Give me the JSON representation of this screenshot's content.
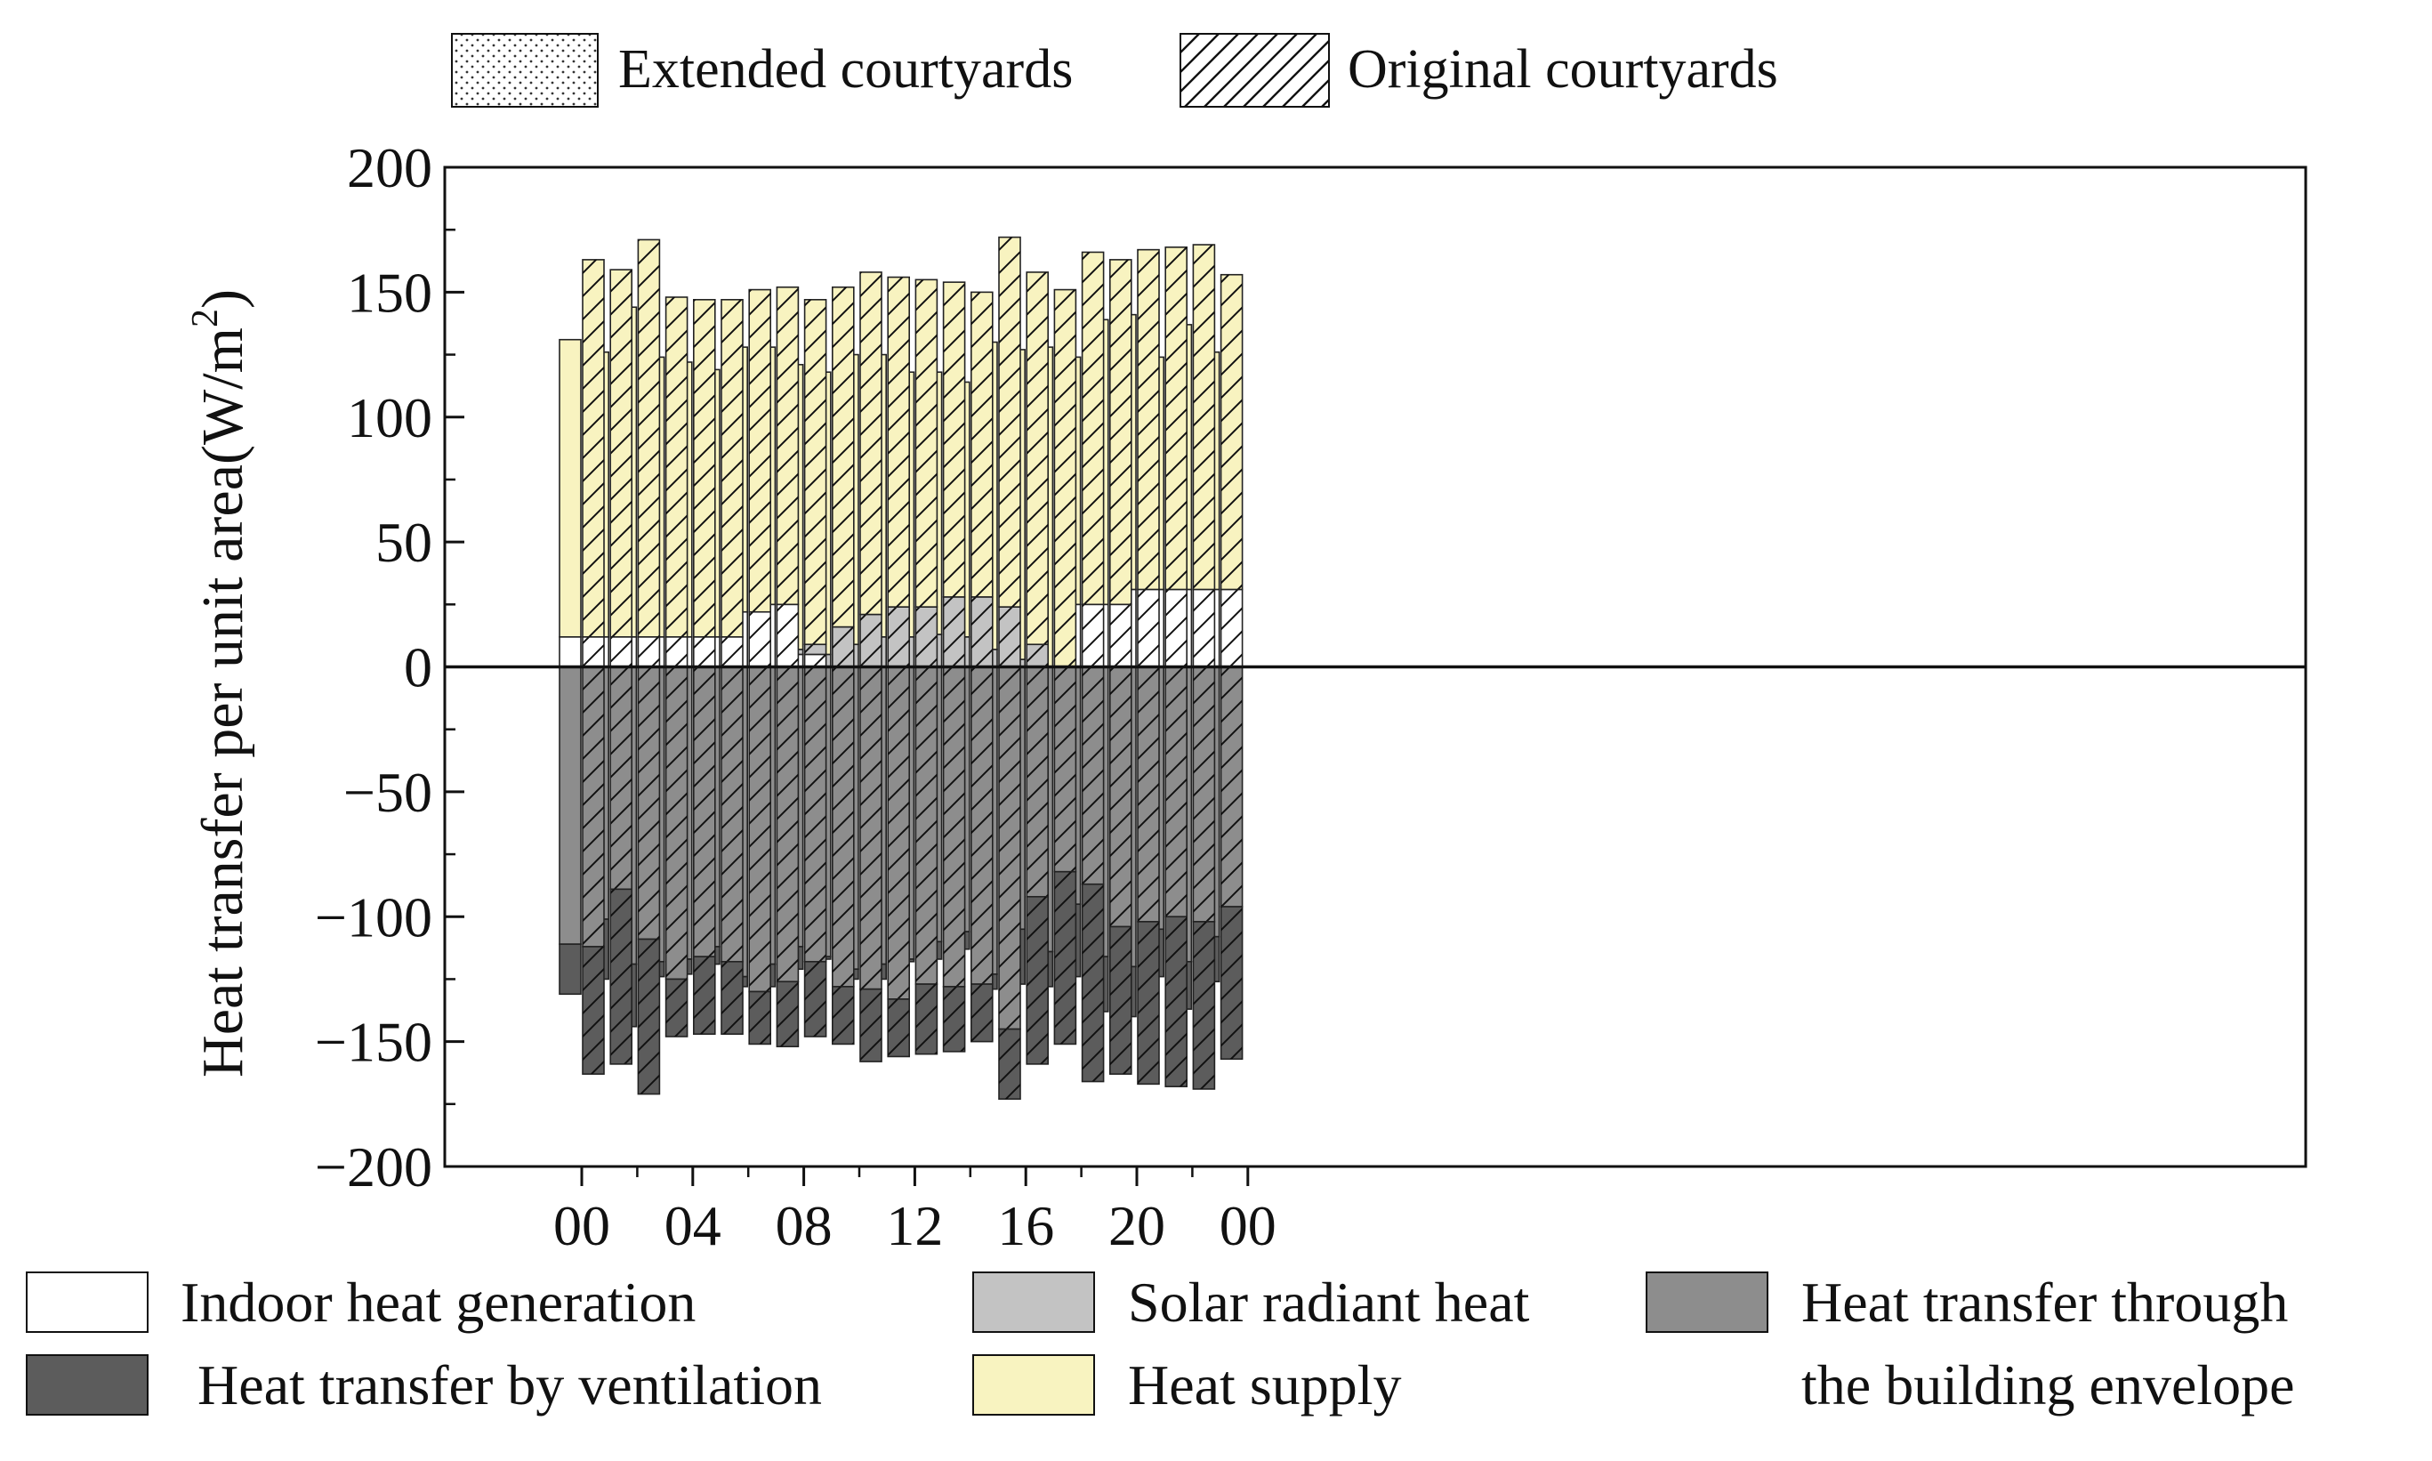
{
  "chart_data": {
    "type": "bar",
    "subtype": "grouped-stacked",
    "ylabel": "Heat transfer per unit area(W/m",
    "ylabel_sup": "2",
    "ylabel_close": ")",
    "ylim": [
      -200,
      200
    ],
    "yticks": [
      -200,
      -150,
      -100,
      -50,
      0,
      50,
      100,
      150,
      200
    ],
    "ytick_labels": [
      "−200",
      "−150",
      "−100",
      "−50",
      "0",
      "50",
      "100",
      "150",
      "200"
    ],
    "x_tick_labels": [
      "00",
      "04",
      "08",
      "12",
      "16",
      "20",
      "00"
    ],
    "x_tick_hours": [
      0,
      4,
      8,
      12,
      16,
      20,
      24
    ],
    "hours": [
      0,
      1,
      2,
      3,
      4,
      5,
      6,
      7,
      8,
      9,
      10,
      11,
      12,
      13,
      14,
      15,
      16,
      17,
      18,
      19,
      20,
      21,
      22,
      23
    ],
    "groups": [
      {
        "name": "Extended courtyards",
        "pattern": "dots"
      },
      {
        "name": "Original courtyards",
        "pattern": "hatch"
      }
    ],
    "components": [
      {
        "name": "Indoor heat generation",
        "color": "#ffffff"
      },
      {
        "name": "Solar radiant heat",
        "color": "#c3c3c3"
      },
      {
        "name": "Heat transfer through the building envelope",
        "color": "#8d8d8d"
      },
      {
        "name": "Heat transfer by ventilation",
        "color": "#5c5c5c"
      },
      {
        "name": "Heat supply",
        "color": "#f8f3c0"
      }
    ],
    "series": {
      "extended": {
        "indoor": [
          12,
          12,
          12,
          12,
          12,
          12,
          22,
          25,
          5,
          0,
          0,
          0,
          0,
          0,
          0,
          0,
          0,
          0,
          25,
          25,
          31,
          31,
          31,
          31
        ],
        "solar": [
          0,
          0,
          0,
          0,
          0,
          0,
          0,
          0,
          2,
          5,
          9,
          12,
          12,
          13,
          12,
          7,
          3,
          0,
          0,
          0,
          0,
          0,
          0,
          0
        ],
        "heat_supply": [
          119,
          114,
          132,
          112,
          110,
          107,
          106,
          103,
          114,
          113,
          116,
          113,
          106,
          105,
          102,
          123,
          124,
          128,
          99,
          114,
          110,
          93,
          106,
          95
        ],
        "envelope": [
          -111,
          -101,
          -119,
          -118,
          -117,
          -112,
          -124,
          -119,
          -112,
          -116,
          -121,
          -119,
          -117,
          -110,
          -106,
          -123,
          -105,
          -114,
          -95,
          -116,
          -120,
          -105,
          -118,
          -108
        ],
        "ventilation": [
          -20,
          -24,
          -25,
          -6,
          -6,
          -7,
          -4,
          -9,
          -9,
          -1,
          -4,
          -6,
          -1,
          -7,
          -7,
          -6,
          -22,
          -14,
          -29,
          -22,
          -20,
          -19,
          -19,
          -18
        ]
      },
      "original": {
        "indoor": [
          12,
          12,
          12,
          12,
          12,
          12,
          22,
          25,
          5,
          0,
          0,
          0,
          0,
          0,
          0,
          0,
          0,
          0,
          25,
          25,
          31,
          31,
          31,
          31
        ],
        "solar": [
          0,
          0,
          0,
          0,
          0,
          0,
          0,
          0,
          4,
          16,
          21,
          24,
          24,
          28,
          28,
          24,
          9,
          0,
          0,
          0,
          0,
          0,
          0,
          0
        ],
        "heat_supply": [
          151,
          147,
          159,
          136,
          135,
          135,
          129,
          127,
          138,
          136,
          137,
          132,
          131,
          126,
          122,
          148,
          149,
          151,
          141,
          138,
          136,
          137,
          138,
          126
        ],
        "envelope": [
          -112,
          -89,
          -109,
          -125,
          -116,
          -118,
          -130,
          -126,
          -118,
          -128,
          -129,
          -133,
          -127,
          -128,
          -127,
          -145,
          -92,
          -82,
          -87,
          -104,
          -102,
          -100,
          -102,
          -96
        ],
        "ventilation": [
          -51,
          -70,
          -62,
          -23,
          -31,
          -29,
          -21,
          -26,
          -30,
          -23,
          -29,
          -23,
          -28,
          -26,
          -23,
          -28,
          -67,
          -69,
          -79,
          -59,
          -65,
          -68,
          -67,
          -61
        ]
      }
    },
    "top_legend": [
      "Extended courtyards",
      "Original courtyards"
    ],
    "bottom_legend": {
      "indoor": "Indoor heat generation",
      "solar": "Solar radiant heat",
      "envelope_line1": "Heat transfer through",
      "envelope_line2": "the building envelope",
      "ventilation": "Heat transfer by ventilation",
      "heat_supply": "Heat supply"
    }
  }
}
